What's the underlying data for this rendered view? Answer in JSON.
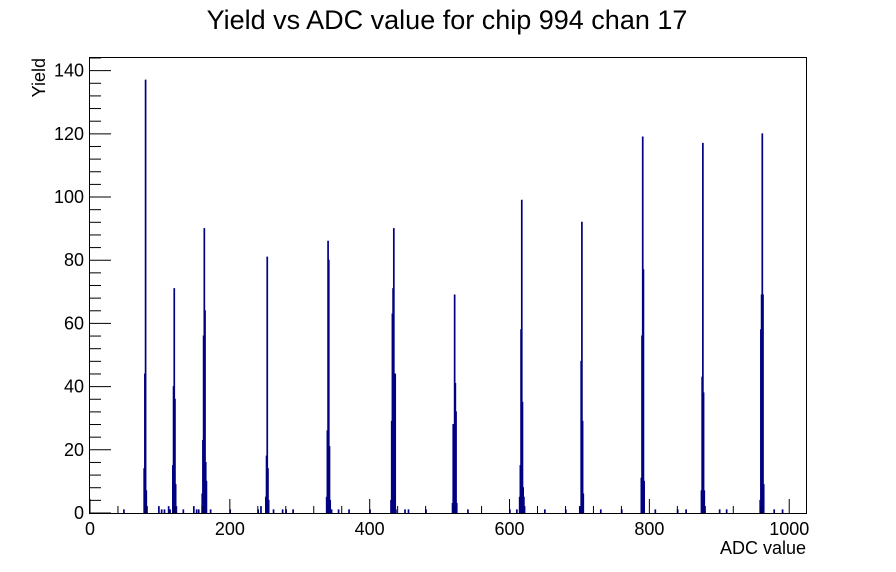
{
  "chart_data": {
    "type": "histogram",
    "title": "Yield vs ADC value for chip 994 chan 17",
    "xlabel": "ADC value",
    "ylabel": "Yield",
    "xlim": [
      0,
      1024
    ],
    "ylim": [
      0,
      144
    ],
    "x_major_ticks": [
      0,
      200,
      400,
      600,
      800,
      1000
    ],
    "y_major_ticks": [
      0,
      20,
      40,
      60,
      80,
      100,
      120,
      140
    ],
    "grid": false,
    "legend": "none",
    "line_color": "#000080",
    "bin_width": 1,
    "bins": [
      [
        48,
        1
      ],
      [
        77,
        14
      ],
      [
        78,
        44
      ],
      [
        79,
        137
      ],
      [
        80,
        7
      ],
      [
        81,
        2
      ],
      [
        98,
        2
      ],
      [
        102,
        1
      ],
      [
        106,
        1
      ],
      [
        112,
        2
      ],
      [
        114,
        1
      ],
      [
        118,
        15
      ],
      [
        119,
        40
      ],
      [
        120,
        71
      ],
      [
        121,
        36
      ],
      [
        122,
        9
      ],
      [
        123,
        2
      ],
      [
        133,
        1
      ],
      [
        148,
        2
      ],
      [
        152,
        1
      ],
      [
        155,
        1
      ],
      [
        160,
        6
      ],
      [
        161,
        23
      ],
      [
        162,
        56
      ],
      [
        163,
        90
      ],
      [
        164,
        64
      ],
      [
        165,
        16
      ],
      [
        166,
        10
      ],
      [
        172,
        1
      ],
      [
        200,
        1
      ],
      [
        240,
        1
      ],
      [
        244,
        2
      ],
      [
        251,
        5
      ],
      [
        252,
        18
      ],
      [
        253,
        81
      ],
      [
        254,
        14
      ],
      [
        255,
        4
      ],
      [
        262,
        1
      ],
      [
        275,
        1
      ],
      [
        280,
        1
      ],
      [
        290,
        1
      ],
      [
        338,
        5
      ],
      [
        339,
        26
      ],
      [
        340,
        86
      ],
      [
        341,
        80
      ],
      [
        342,
        21
      ],
      [
        343,
        4
      ],
      [
        345,
        1
      ],
      [
        355,
        1
      ],
      [
        370,
        1
      ],
      [
        400,
        1
      ],
      [
        430,
        4
      ],
      [
        431,
        29
      ],
      [
        432,
        63
      ],
      [
        433,
        71
      ],
      [
        434,
        90
      ],
      [
        435,
        34
      ],
      [
        436,
        44
      ],
      [
        437,
        1
      ],
      [
        450,
        1
      ],
      [
        455,
        1
      ],
      [
        480,
        1
      ],
      [
        518,
        3
      ],
      [
        519,
        28
      ],
      [
        520,
        13
      ],
      [
        521,
        69
      ],
      [
        522,
        41
      ],
      [
        523,
        32
      ],
      [
        524,
        3
      ],
      [
        540,
        1
      ],
      [
        600,
        1
      ],
      [
        610,
        1
      ],
      [
        614,
        5
      ],
      [
        615,
        15
      ],
      [
        616,
        58
      ],
      [
        617,
        99
      ],
      [
        618,
        35
      ],
      [
        619,
        8
      ],
      [
        620,
        5
      ],
      [
        621,
        2
      ],
      [
        650,
        1
      ],
      [
        680,
        1
      ],
      [
        700,
        2
      ],
      [
        701,
        2
      ],
      [
        702,
        48
      ],
      [
        703,
        92
      ],
      [
        704,
        29
      ],
      [
        705,
        6
      ],
      [
        730,
        1
      ],
      [
        760,
        1
      ],
      [
        788,
        11
      ],
      [
        789,
        56
      ],
      [
        790,
        119
      ],
      [
        791,
        77
      ],
      [
        792,
        10
      ],
      [
        808,
        1
      ],
      [
        840,
        1
      ],
      [
        852,
        1
      ],
      [
        874,
        7
      ],
      [
        875,
        43
      ],
      [
        876,
        117
      ],
      [
        877,
        38
      ],
      [
        878,
        7
      ],
      [
        900,
        1
      ],
      [
        910,
        1
      ],
      [
        958,
        4
      ],
      [
        959,
        58
      ],
      [
        960,
        69
      ],
      [
        961,
        120
      ],
      [
        962,
        69
      ],
      [
        963,
        9
      ],
      [
        978,
        1
      ],
      [
        990,
        1
      ]
    ]
  }
}
